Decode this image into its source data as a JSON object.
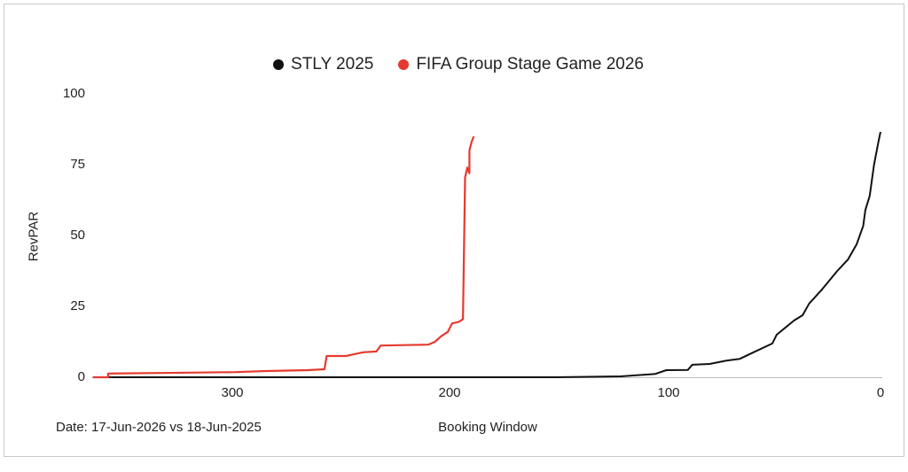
{
  "legend": {
    "items": [
      {
        "label": "STLY 2025",
        "color": "#111111"
      },
      {
        "label": "FIFA Group Stage Game 2026",
        "color": "#e53a2f"
      }
    ]
  },
  "axes": {
    "ylabel": "RevPAR",
    "xlabel": "Booking Window",
    "yticks": [
      "100",
      "75",
      "50",
      "25",
      "0"
    ],
    "xticks": [
      "300",
      "200",
      "100",
      "0"
    ]
  },
  "footer": {
    "date_note": "Date: 17-Jun-2026 vs 18-Jun-2025"
  },
  "chart_data": {
    "type": "line",
    "title": "",
    "xlabel": "Booking Window",
    "ylabel": "RevPAR",
    "xlim": [
      364,
      0
    ],
    "x_reversed": true,
    "ylim": [
      0,
      100
    ],
    "xticks": [
      300,
      200,
      100,
      0
    ],
    "yticks": [
      0,
      25,
      50,
      75,
      100
    ],
    "grid": false,
    "legend_position": "top",
    "annotations": [
      "Date: 17-Jun-2026 vs 18-Jun-2025"
    ],
    "series": [
      {
        "name": "STLY 2025",
        "color": "#111111",
        "points": [
          [
            364,
            0
          ],
          [
            300,
            0
          ],
          [
            200,
            0
          ],
          [
            149,
            0
          ],
          [
            120,
            0.3
          ],
          [
            104,
            1.2
          ],
          [
            99,
            2.5
          ],
          [
            89,
            2.6
          ],
          [
            87,
            4.4
          ],
          [
            79,
            4.7
          ],
          [
            71,
            5.9
          ],
          [
            65,
            6.5
          ],
          [
            59,
            8.7
          ],
          [
            50,
            11.9
          ],
          [
            48,
            15
          ],
          [
            40,
            20
          ],
          [
            36,
            21.9
          ],
          [
            33,
            26
          ],
          [
            27,
            31
          ],
          [
            20,
            37.5
          ],
          [
            15,
            41.6
          ],
          [
            11,
            47
          ],
          [
            8,
            53.4
          ],
          [
            7,
            59
          ],
          [
            5,
            64
          ],
          [
            3,
            75
          ],
          [
            1,
            83
          ],
          [
            0,
            86.6
          ]
        ]
      },
      {
        "name": "FIFA Group Stage Game 2026",
        "color": "#e53a2f",
        "points": [
          [
            364,
            0
          ],
          [
            357,
            0
          ],
          [
            357,
            1.3
          ],
          [
            333,
            1.5
          ],
          [
            298,
            1.8
          ],
          [
            284,
            2.2
          ],
          [
            265,
            2.5
          ],
          [
            257,
            2.8
          ],
          [
            256,
            7.5
          ],
          [
            247,
            7.5
          ],
          [
            243,
            8.2
          ],
          [
            239,
            8.8
          ],
          [
            233,
            9.1
          ],
          [
            231,
            11.2
          ],
          [
            209,
            11.5
          ],
          [
            206,
            12.5
          ],
          [
            203,
            14.5
          ],
          [
            200,
            16
          ],
          [
            198,
            19
          ],
          [
            195,
            19.5
          ],
          [
            193,
            20.5
          ],
          [
            192,
            70.5
          ],
          [
            191,
            74
          ],
          [
            190,
            72
          ],
          [
            190,
            80
          ],
          [
            189,
            83
          ],
          [
            188,
            85
          ]
        ]
      }
    ]
  }
}
